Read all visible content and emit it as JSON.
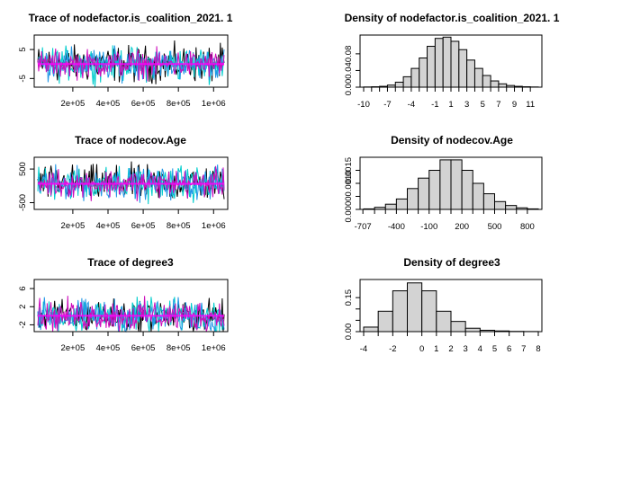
{
  "chart_data": [
    {
      "type": "line",
      "title": "Trace of nodefactor.is_coalition_2021.   1",
      "xlabel": "",
      "ylabel": "",
      "x_range": [
        1000,
        1060000
      ],
      "x_ticks": [
        200000,
        400000,
        600000,
        800000,
        1000000
      ],
      "x_tick_labels": [
        "2e+05",
        "4e+05",
        "6e+05",
        "8e+05",
        "1e+06"
      ],
      "ylim": [
        -8,
        10
      ],
      "y_ticks": [
        -5,
        5
      ],
      "y_tick_labels": [
        "-5",
        "5"
      ],
      "series": [
        {
          "color": "#000000",
          "center": 0,
          "halfwidth": 7.0
        },
        {
          "color": "#00cdcd",
          "center": 0,
          "halfwidth": 6.5
        },
        {
          "color": "#2297e6",
          "center": 0,
          "halfwidth": 6.0
        },
        {
          "color": "#cd0bbc",
          "center": 0,
          "halfwidth": 5.5
        }
      ],
      "mean_line": 0,
      "mean_line_color": "#ff00ff",
      "grid": false,
      "legend": "none"
    },
    {
      "type": "bar",
      "title": "Density of nodefactor.is_coalition_2021.   1",
      "xlabel": "",
      "ylabel": "",
      "bin_edges": [
        -10,
        -9,
        -8,
        -7,
        -6,
        -5,
        -4,
        -3,
        -2,
        -1,
        0,
        1,
        2,
        3,
        4,
        5,
        6,
        7,
        8,
        9,
        10,
        11,
        12
      ],
      "values": [
        0.0005,
        0.001,
        0.002,
        0.005,
        0.012,
        0.025,
        0.045,
        0.07,
        0.098,
        0.117,
        0.12,
        0.11,
        0.09,
        0.065,
        0.045,
        0.028,
        0.015,
        0.008,
        0.004,
        0.002,
        0.001,
        0.0005
      ],
      "x_ticks": [
        -10,
        -9,
        -8,
        -7,
        -6,
        -5,
        -4,
        -3,
        -2,
        -1,
        0,
        1,
        2,
        3,
        4,
        5,
        6,
        7,
        8,
        9,
        10,
        11
      ],
      "x_tick_labels": [
        "-10",
        "",
        "",
        "-7",
        "",
        "",
        "-4",
        "",
        "",
        "-1",
        "",
        "1",
        "",
        "3",
        "",
        "5",
        "",
        "7",
        "",
        "9",
        "",
        "11"
      ],
      "ylim": [
        0,
        0.125
      ],
      "y_ticks": [
        0,
        0.04,
        0.08
      ],
      "y_tick_labels": [
        "0.00",
        "0.04",
        "0.08"
      ],
      "bar_color": "#d3d3d3"
    },
    {
      "type": "line",
      "title": "Trace of nodecov.Age",
      "xlabel": "",
      "ylabel": "",
      "x_range": [
        1000,
        1060000
      ],
      "x_ticks": [
        200000,
        400000,
        600000,
        800000,
        1000000
      ],
      "x_tick_labels": [
        "2e+05",
        "4e+05",
        "6e+05",
        "8e+05",
        "1e+06"
      ],
      "ylim": [
        -700,
        850
      ],
      "y_ticks": [
        -500,
        500
      ],
      "y_tick_labels": [
        "-500",
        "500"
      ],
      "series": [
        {
          "color": "#000000",
          "center": 70,
          "halfwidth": 600
        },
        {
          "color": "#00cdcd",
          "center": 70,
          "halfwidth": 560
        },
        {
          "color": "#2297e6",
          "center": 70,
          "halfwidth": 520
        },
        {
          "color": "#cd0bbc",
          "center": 70,
          "halfwidth": 480
        }
      ],
      "mean_line": 60,
      "mean_line_color": "#ff00ff",
      "grid": false,
      "legend": "none"
    },
    {
      "type": "bar",
      "title": "Density of nodecov.Age",
      "xlabel": "",
      "ylabel": "",
      "bin_edges": [
        -700,
        -600,
        -500,
        -400,
        -300,
        -200,
        -100,
        0,
        100,
        200,
        300,
        400,
        500,
        600,
        700,
        800,
        900
      ],
      "values": [
        2e-05,
        8e-05,
        0.0002,
        0.0004,
        0.0008,
        0.0012,
        0.0015,
        0.0019,
        0.0019,
        0.0015,
        0.001,
        0.0006,
        0.0003,
        0.00015,
        6e-05,
        2e-05
      ],
      "x_ticks": [
        -707,
        -600,
        -500,
        -400,
        -300,
        -200,
        -100,
        0,
        100,
        200,
        300,
        400,
        500,
        600,
        700,
        800
      ],
      "x_tick_labels": [
        "-707",
        "",
        "",
        "-400",
        "",
        "",
        "-100",
        "",
        "",
        "200",
        "",
        "",
        "500",
        "",
        "",
        "800"
      ],
      "ylim": [
        0,
        0.002
      ],
      "y_ticks": [
        0,
        0.0005,
        0.001,
        0.0015
      ],
      "y_tick_labels": [
        "0.0000",
        "",
        "0.0010",
        "0.0015"
      ],
      "bar_color": "#d3d3d3"
    },
    {
      "type": "line",
      "title": "Trace of degree3",
      "xlabel": "",
      "ylabel": "",
      "x_range": [
        1000,
        1060000
      ],
      "x_ticks": [
        200000,
        400000,
        600000,
        800000,
        1000000
      ],
      "x_tick_labels": [
        "2e+05",
        "4e+05",
        "6e+05",
        "8e+05",
        "1e+06"
      ],
      "ylim": [
        -3.5,
        8
      ],
      "y_ticks": [
        -2,
        2,
        6
      ],
      "y_tick_labels": [
        "-2",
        "2",
        "6"
      ],
      "series": [
        {
          "color": "#000000",
          "center": 0,
          "halfwidth": 4
        },
        {
          "color": "#00cdcd",
          "center": 0,
          "halfwidth": 4
        },
        {
          "color": "#2297e6",
          "center": 0,
          "halfwidth": 4
        },
        {
          "color": "#cd0bbc",
          "center": 0,
          "halfwidth": 4
        }
      ],
      "mean_line": 0,
      "mean_line_color": "#ff00ff",
      "grid": false,
      "legend": "none"
    },
    {
      "type": "bar",
      "title": "Density of degree3",
      "xlabel": "",
      "ylabel": "",
      "bin_edges": [
        -4,
        -3,
        -2,
        -1,
        0,
        1,
        2,
        3,
        4,
        5,
        6,
        7,
        8
      ],
      "values": [
        0.02,
        0.09,
        0.18,
        0.215,
        0.18,
        0.09,
        0.045,
        0.015,
        0.006,
        0.003,
        0.001,
        0.0005
      ],
      "x_ticks": [
        -4,
        -3,
        -2,
        -1,
        0,
        1,
        2,
        3,
        4,
        5,
        6,
        7,
        8
      ],
      "x_tick_labels": [
        "-4",
        "",
        "-2",
        "",
        "0",
        "1",
        "2",
        "3",
        "4",
        "5",
        "6",
        "7",
        "8"
      ],
      "ylim": [
        0,
        0.23
      ],
      "y_ticks": [
        0,
        0.05,
        0.1,
        0.15
      ],
      "y_tick_labels": [
        "0.00",
        "",
        "",
        "0.15"
      ],
      "bar_color": "#d3d3d3"
    }
  ]
}
